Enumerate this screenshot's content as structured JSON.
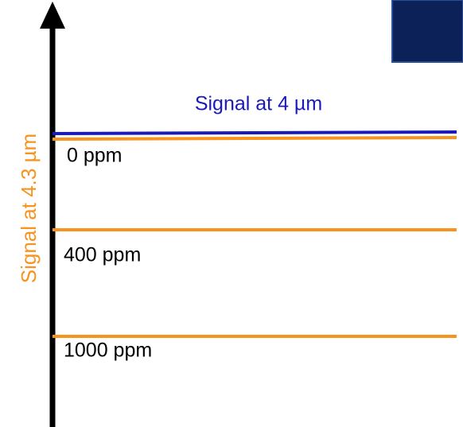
{
  "axis_label": "Signal at 4.3 µm",
  "reference_label": "Signal at 4 µm",
  "levels": [
    {
      "label": "0 ppm"
    },
    {
      "label": "400 ppm"
    },
    {
      "label": "1000 ppm"
    }
  ]
}
